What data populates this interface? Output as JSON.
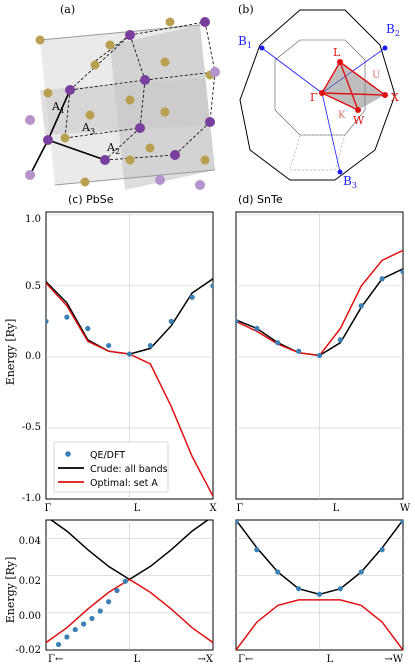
{
  "panels": {
    "a": {
      "label": "(a)"
    },
    "b": {
      "label": "(b)"
    },
    "c": {
      "label": "(c) PbSe"
    },
    "d": {
      "label": "(d) SnTe"
    }
  },
  "lattice_labels": [
    "A",
    "A",
    "A"
  ],
  "lattice_subscripts": [
    "1",
    "3",
    "2"
  ],
  "bz_labels": {
    "B1": [
      "B",
      "1"
    ],
    "B2": [
      "B",
      "2"
    ],
    "B3": [
      "B",
      "3"
    ],
    "points": [
      "L",
      "U",
      "X",
      "W",
      "K",
      "Γ"
    ]
  },
  "colors": {
    "dft": "#3a7fb5",
    "crude": "#000000",
    "optimal": "#e01010",
    "bz_vectors": "#1a1aff",
    "bz_points": "#e01010"
  },
  "legend": [
    "QE/DFT",
    "Crude: all bands",
    "Optimal: set A"
  ],
  "chart_data": [
    {
      "type": "line",
      "panel": "(c) PbSe",
      "ylabel": "Energy [Ry]",
      "ylim": [
        -1.0,
        1.02
      ],
      "yticks": [
        "1.0",
        "0.5",
        "0.0",
        "-0.5",
        "-1.0"
      ],
      "xticks": [
        "Γ",
        "L",
        "X"
      ],
      "grid": true,
      "series": [
        {
          "name": "Crude: all bands",
          "x": [
            0,
            0.25,
            0.5,
            0.75,
            1,
            1.25,
            1.5,
            1.75,
            2
          ],
          "y": [
            0.53,
            0.38,
            0.12,
            0.04,
            0.02,
            0.06,
            0.22,
            0.45,
            0.55
          ]
        },
        {
          "name": "Optimal: set A",
          "x": [
            0,
            0.25,
            0.5,
            0.75,
            1,
            1.25,
            1.5,
            1.75,
            2
          ],
          "y": [
            0.52,
            0.36,
            0.11,
            0.04,
            0.02,
            -0.05,
            -0.35,
            -0.7,
            -0.98
          ]
        },
        {
          "name": "QE/DFT",
          "x": [
            0,
            0.25,
            0.5,
            0.75,
            1,
            1.25,
            1.5,
            1.75,
            2
          ],
          "y": [
            0.25,
            0.28,
            0.2,
            0.08,
            0.02,
            0.08,
            0.25,
            0.42,
            0.5
          ]
        }
      ]
    },
    {
      "type": "line",
      "panel": "(d) SnTe",
      "ylim": [
        -1.0,
        1.02
      ],
      "xticks": [
        "Γ",
        "L",
        "W"
      ],
      "grid": true,
      "series": [
        {
          "name": "Crude: all bands",
          "x": [
            0,
            0.25,
            0.5,
            0.75,
            1,
            1.25,
            1.5,
            1.75,
            2
          ],
          "y": [
            0.26,
            0.2,
            0.1,
            0.03,
            0.01,
            0.1,
            0.35,
            0.55,
            0.62
          ]
        },
        {
          "name": "Optimal: set A",
          "x": [
            0,
            0.25,
            0.5,
            0.75,
            1,
            1.25,
            1.5,
            1.75,
            2
          ],
          "y": [
            0.25,
            0.18,
            0.09,
            0.03,
            0.01,
            0.2,
            0.5,
            0.68,
            0.75
          ]
        },
        {
          "name": "QE/DFT",
          "x": [
            0,
            0.25,
            0.5,
            0.75,
            1,
            1.25,
            1.5,
            1.75,
            2
          ],
          "y": [
            0.25,
            0.2,
            0.1,
            0.04,
            0.01,
            0.12,
            0.36,
            0.55,
            0.6
          ]
        }
      ]
    },
    {
      "type": "line",
      "panel": "(c) PbSe zoom",
      "ylabel": "Energy [Ry]",
      "ylim": [
        -0.02,
        0.05
      ],
      "yticks": [
        "0.04",
        "0.02",
        "0.00",
        "-0.02"
      ],
      "xticks": [
        "Γ←",
        "L",
        "→X"
      ],
      "grid": true,
      "series": [
        {
          "name": "Crude: all bands",
          "x": [
            -1,
            -0.75,
            -0.5,
            -0.25,
            0,
            0.25,
            0.5,
            0.75,
            1
          ],
          "y": [
            0.052,
            0.044,
            0.034,
            0.025,
            0.018,
            0.025,
            0.034,
            0.044,
            0.052
          ]
        },
        {
          "name": "Optimal: set A",
          "x": [
            -1,
            -0.75,
            -0.5,
            -0.25,
            0,
            0.25,
            0.5,
            0.75,
            1
          ],
          "y": [
            -0.016,
            -0.008,
            0.002,
            0.011,
            0.018,
            0.011,
            0.002,
            -0.008,
            -0.016
          ]
        },
        {
          "name": "QE/DFT",
          "x": [
            -0.95,
            -0.85,
            -0.75,
            -0.65,
            -0.55,
            -0.45,
            -0.35,
            -0.25,
            -0.15,
            -0.05
          ],
          "y": [
            -0.021,
            -0.017,
            -0.013,
            -0.009,
            -0.006,
            -0.003,
            0.001,
            0.006,
            0.012,
            0.017
          ]
        }
      ]
    },
    {
      "type": "line",
      "panel": "(d) SnTe zoom",
      "ylim": [
        -0.02,
        0.05
      ],
      "xticks": [
        "Γ←",
        "L",
        "→W"
      ],
      "grid": true,
      "series": [
        {
          "name": "Crude: all bands",
          "x": [
            -1,
            -0.75,
            -0.5,
            -0.25,
            0,
            0.25,
            0.5,
            0.75,
            1
          ],
          "y": [
            0.05,
            0.035,
            0.022,
            0.013,
            0.01,
            0.013,
            0.022,
            0.035,
            0.05
          ]
        },
        {
          "name": "Optimal: set A",
          "x": [
            -1,
            -0.75,
            -0.5,
            -0.25,
            0,
            0.25,
            0.5,
            0.75,
            1
          ],
          "y": [
            -0.02,
            -0.005,
            0.004,
            0.007,
            0.007,
            0.007,
            0.004,
            -0.005,
            -0.02
          ]
        },
        {
          "name": "QE/DFT",
          "x": [
            -1,
            -0.75,
            -0.5,
            -0.25,
            0,
            0.25,
            0.5,
            0.75,
            1
          ],
          "y": [
            0.049,
            0.034,
            0.022,
            0.013,
            0.01,
            0.013,
            0.022,
            0.034,
            0.049
          ]
        }
      ]
    }
  ]
}
